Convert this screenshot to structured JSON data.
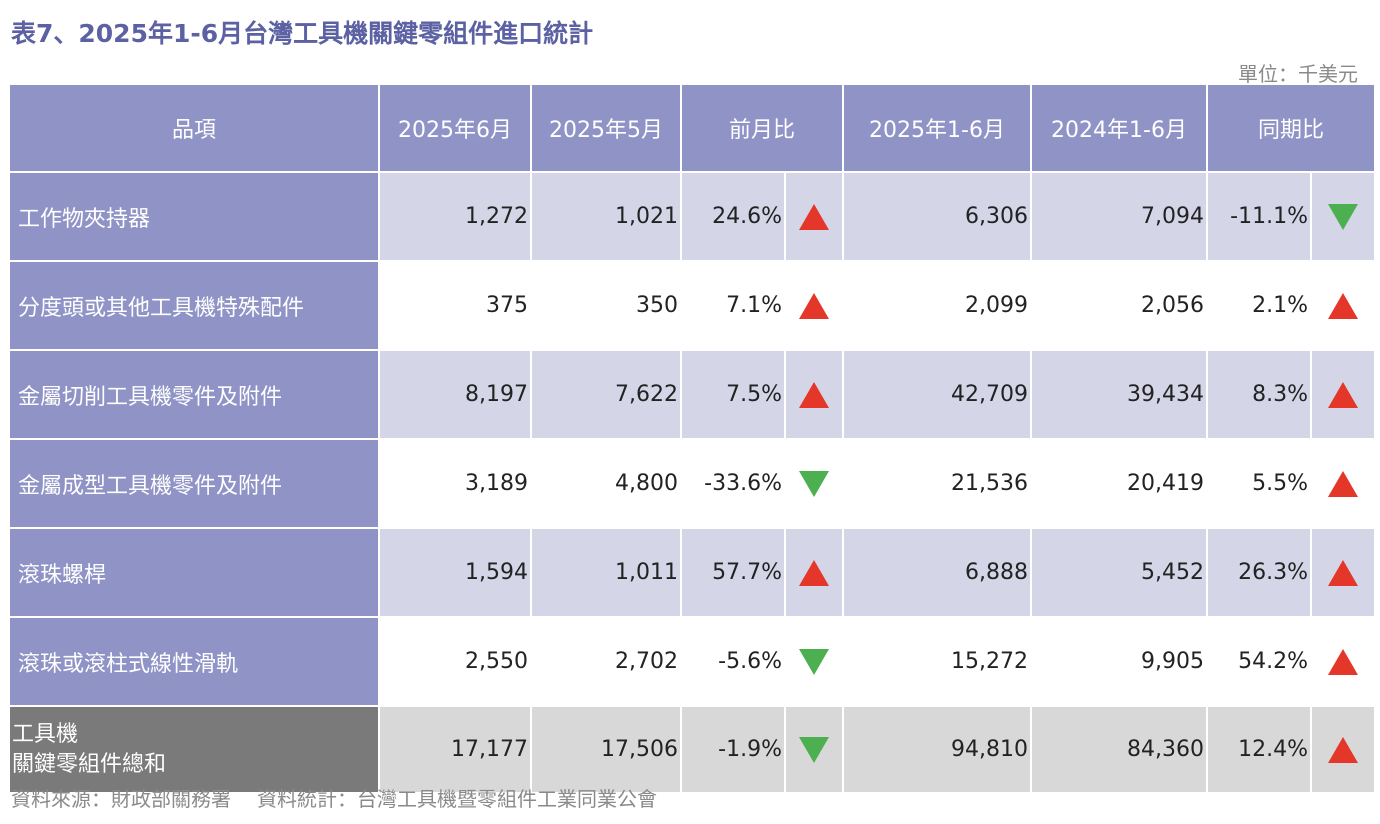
{
  "title": "表7、2025年1-6月台灣工具機關鍵零組件進口統計",
  "unit": "單位：千美元",
  "colors": {
    "header": "#8f93c6",
    "row_light": "#d4d6e8",
    "total_label": "#7a7a7a",
    "total_row": "#d8d8d8",
    "up": "#e5362a",
    "down": "#4caf50",
    "title": "#5c61a3"
  },
  "headers": {
    "item": "品項",
    "jun2025": "2025年6月",
    "may2025": "2025年5月",
    "mom": "前月比",
    "ytd2025": "2025年1-6月",
    "ytd2024": "2024年1-6月",
    "yoy": "同期比"
  },
  "rows": [
    {
      "name": "工作物夾持器",
      "jun2025": "1,272",
      "may2025": "1,021",
      "mom": "24.6%",
      "mom_dir": "up",
      "ytd2025": "6,306",
      "ytd2024": "7,094",
      "yoy": "-11.1%",
      "yoy_dir": "down"
    },
    {
      "name": "分度頭或其他工具機特殊配件",
      "jun2025": "375",
      "may2025": "350",
      "mom": "7.1%",
      "mom_dir": "up",
      "ytd2025": "2,099",
      "ytd2024": "2,056",
      "yoy": "2.1%",
      "yoy_dir": "up"
    },
    {
      "name": "金屬切削工具機零件及附件",
      "jun2025": "8,197",
      "may2025": "7,622",
      "mom": "7.5%",
      "mom_dir": "up",
      "ytd2025": "42,709",
      "ytd2024": "39,434",
      "yoy": "8.3%",
      "yoy_dir": "up"
    },
    {
      "name": "金屬成型工具機零件及附件",
      "jun2025": "3,189",
      "may2025": "4,800",
      "mom": "-33.6%",
      "mom_dir": "down",
      "ytd2025": "21,536",
      "ytd2024": "20,419",
      "yoy": "5.5%",
      "yoy_dir": "up"
    },
    {
      "name": "滾珠螺桿",
      "jun2025": "1,594",
      "may2025": "1,011",
      "mom": "57.7%",
      "mom_dir": "up",
      "ytd2025": "6,888",
      "ytd2024": "5,452",
      "yoy": "26.3%",
      "yoy_dir": "up"
    },
    {
      "name": "滾珠或滾柱式線性滑軌",
      "jun2025": "2,550",
      "may2025": "2,702",
      "mom": "-5.6%",
      "mom_dir": "down",
      "ytd2025": "15,272",
      "ytd2024": "9,905",
      "yoy": "54.2%",
      "yoy_dir": "up"
    }
  ],
  "total": {
    "name_line1": "工具機",
    "name_line2": "關鍵零組件總和",
    "jun2025": "17,177",
    "may2025": "17,506",
    "mom": "-1.9%",
    "mom_dir": "down",
    "ytd2025": "94,810",
    "ytd2024": "84,360",
    "yoy": "12.4%",
    "yoy_dir": "up"
  },
  "source": {
    "origin": "資料來源：財政部關務署",
    "compiled": "資料統計：台灣工具機暨零組件工業同業公會"
  }
}
